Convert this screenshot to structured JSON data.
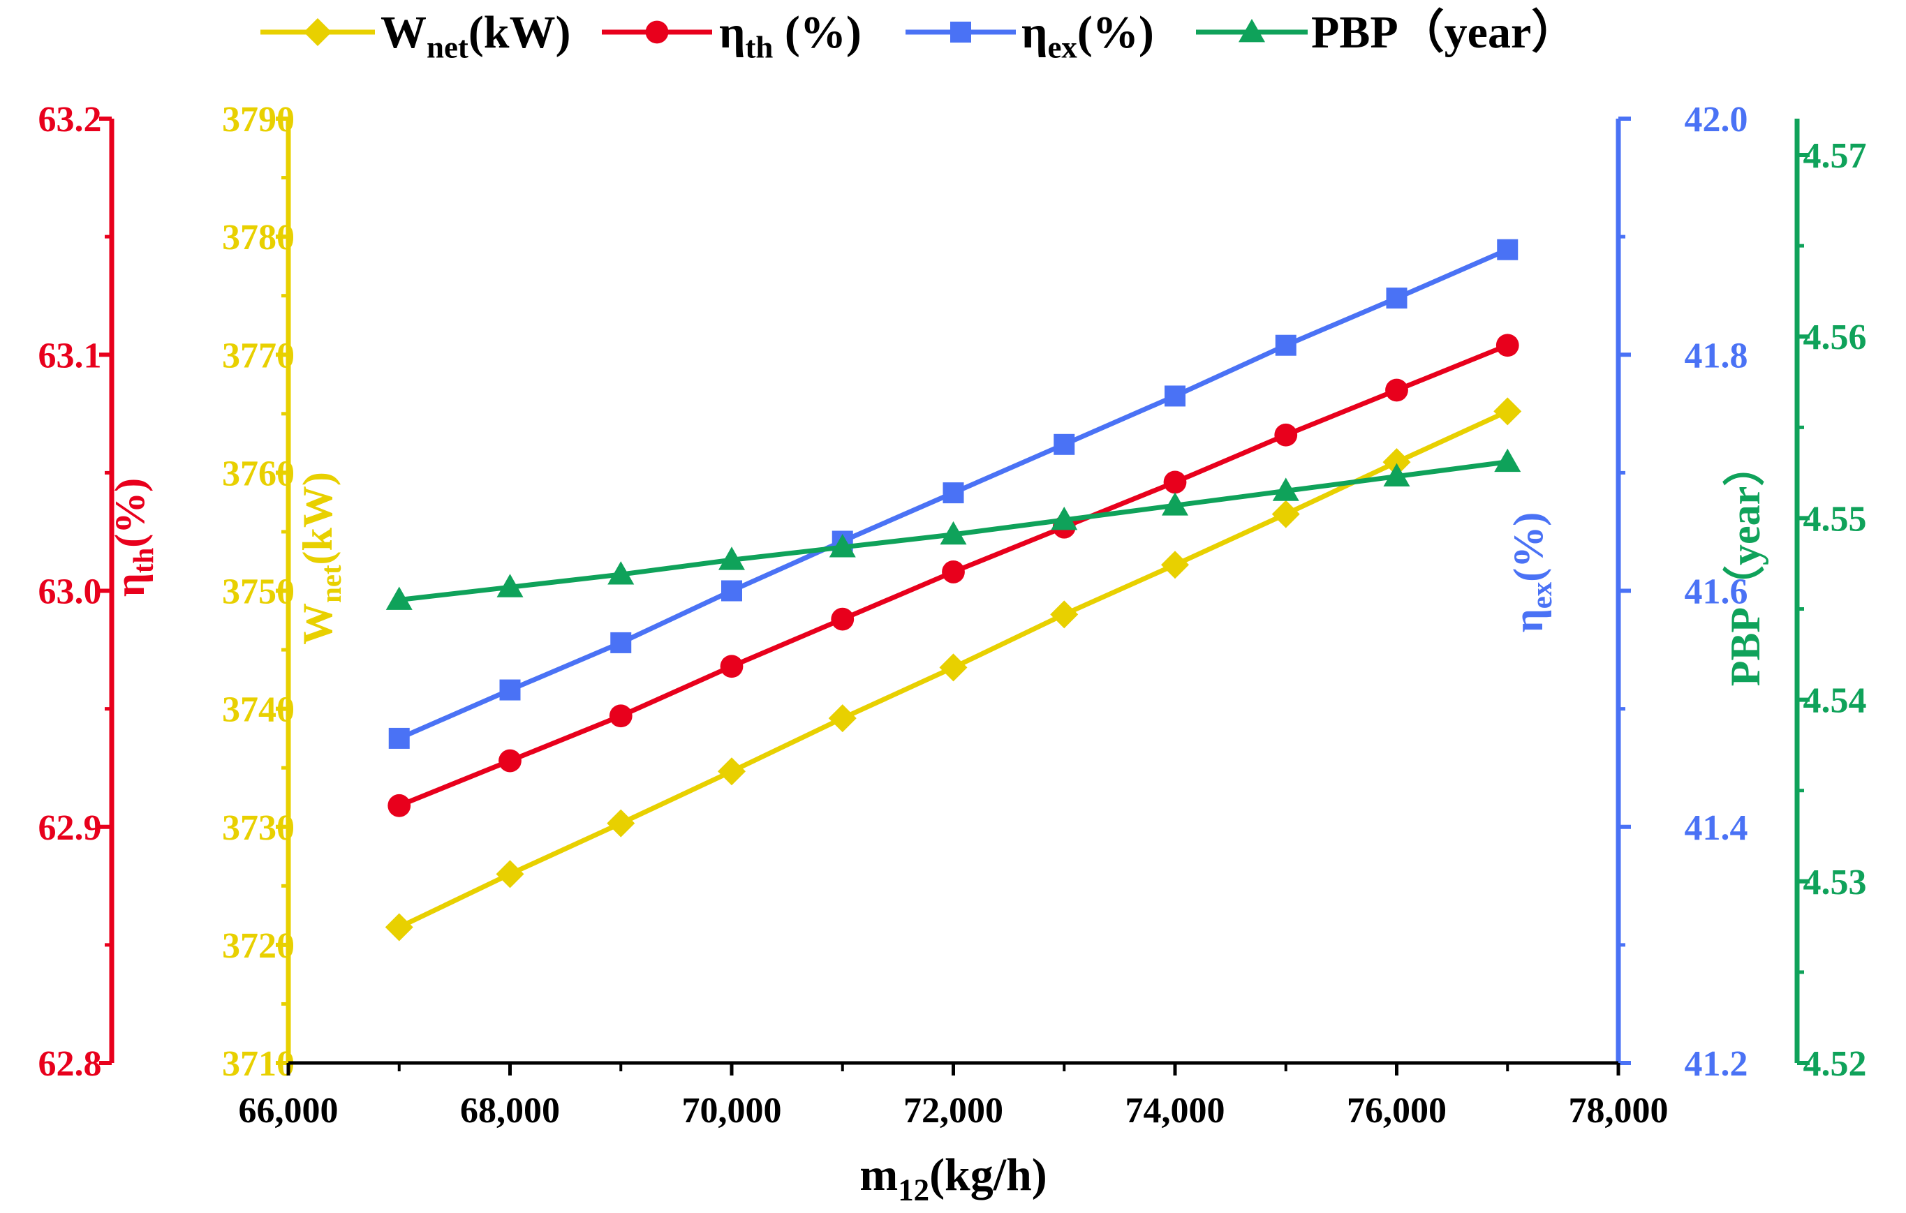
{
  "chart_data": {
    "type": "line",
    "x": [
      67000,
      68000,
      69000,
      70000,
      71000,
      72000,
      73000,
      74000,
      75000,
      76000,
      77000
    ],
    "xlabel": {
      "main": "m",
      "sub": "12",
      "tail": "(kg/h)"
    },
    "xlim": [
      66000,
      78000
    ],
    "x_ticks": [
      66000,
      68000,
      70000,
      72000,
      74000,
      76000,
      78000
    ],
    "x_tick_labels": [
      "66,000",
      "68,000",
      "70,000",
      "72,000",
      "74,000",
      "76,000",
      "78,000"
    ],
    "grid": false,
    "legend_position": "top-center",
    "series": [
      {
        "id": "wnet",
        "name": "W_net(kW)",
        "legend_main": "W",
        "legend_sub": "net",
        "legend_tail": "(kW)",
        "axis_main": "W",
        "axis_sub": "net",
        "axis_tail": "(kW)",
        "color": "#E8D000",
        "marker": "diamond",
        "values": [
          3721.5,
          3726.0,
          3730.3,
          3734.7,
          3739.2,
          3743.5,
          3748.0,
          3752.2,
          3756.5,
          3760.9,
          3765.2
        ],
        "ylim": [
          3710,
          3790
        ],
        "ticks": [
          3710,
          3720,
          3730,
          3740,
          3750,
          3760,
          3770,
          3780,
          3790
        ],
        "tick_labels": [
          "3710",
          "3720",
          "3730",
          "3740",
          "3750",
          "3760",
          "3770",
          "3780",
          "3790"
        ]
      },
      {
        "id": "eta_th",
        "name": "η_th (%)",
        "legend_main": "η",
        "legend_sub": "th",
        "legend_tail": " (%)",
        "axis_main": "η",
        "axis_sub": "th",
        "axis_tail": "(%)",
        "color": "#E8001C",
        "marker": "circle",
        "values": [
          62.909,
          62.928,
          62.947,
          62.968,
          62.988,
          63.008,
          63.027,
          63.046,
          63.066,
          63.085,
          63.104
        ],
        "ylim": [
          62.8,
          63.2
        ],
        "ticks": [
          62.8,
          62.9,
          63.0,
          63.1,
          63.2
        ],
        "tick_labels": [
          "62.8",
          "62.9",
          "63.0",
          "63.1",
          "63.2"
        ]
      },
      {
        "id": "eta_ex",
        "name": "η_ex(%)",
        "legend_main": "η",
        "legend_sub": "ex",
        "legend_tail": "(%)",
        "axis_main": "η",
        "axis_sub": "ex",
        "axis_tail": "(%)",
        "color": "#4A72F5",
        "marker": "square",
        "values": [
          41.475,
          41.516,
          41.556,
          41.6,
          41.642,
          41.683,
          41.724,
          41.765,
          41.808,
          41.848,
          41.889
        ],
        "ylim": [
          41.2,
          42.0
        ],
        "ticks": [
          41.2,
          41.4,
          41.6,
          41.8,
          42.0
        ],
        "tick_labels": [
          "41.2",
          "41.4",
          "41.6",
          "41.8",
          "42.0"
        ]
      },
      {
        "id": "pbp",
        "name": "PBP（year）",
        "legend_main": "PBP（year）",
        "legend_sub": "",
        "legend_tail": "",
        "axis_main": "PBP（year）",
        "axis_sub": "",
        "axis_tail": "",
        "color": "#0FA25A",
        "marker": "triangle",
        "values": [
          4.5455,
          4.5462,
          4.5469,
          4.5477,
          4.5484,
          4.5491,
          4.5499,
          4.5507,
          4.5515,
          4.5523,
          4.5531
        ],
        "ylim": [
          4.52,
          4.572
        ],
        "ticks": [
          4.52,
          4.53,
          4.54,
          4.55,
          4.56,
          4.57
        ],
        "tick_labels": [
          "4.52",
          "4.53",
          "4.54",
          "4.55",
          "4.56",
          "4.57"
        ]
      }
    ]
  }
}
